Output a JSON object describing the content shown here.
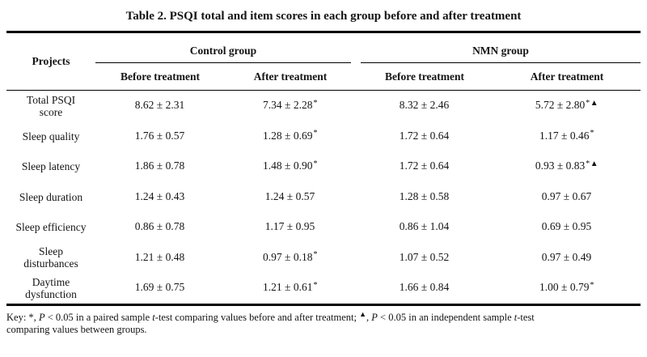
{
  "title": "Table 2. PSQI total and item scores in each group before and after treatment",
  "table": {
    "projects_header": "Projects",
    "groups": [
      {
        "label": "Control group",
        "sub": [
          "Before treatment",
          "After treatment"
        ]
      },
      {
        "label": "NMN group",
        "sub": [
          "Before treatment",
          "After treatment"
        ]
      }
    ],
    "rows": [
      {
        "label": "Total PSQI score",
        "cells": [
          {
            "value": "8.62 ± 2.31",
            "marker": ""
          },
          {
            "value": "7.34 ± 2.28",
            "marker": "*"
          },
          {
            "value": "8.32 ± 2.46",
            "marker": ""
          },
          {
            "value": "5.72 ± 2.80",
            "marker": "*▲"
          }
        ]
      },
      {
        "label": "Sleep quality",
        "cells": [
          {
            "value": "1.76 ± 0.57",
            "marker": ""
          },
          {
            "value": "1.28 ± 0.69",
            "marker": "*"
          },
          {
            "value": "1.72 ± 0.64",
            "marker": ""
          },
          {
            "value": "1.17 ± 0.46",
            "marker": "*"
          }
        ]
      },
      {
        "label": "Sleep latency",
        "cells": [
          {
            "value": "1.86 ± 0.78",
            "marker": ""
          },
          {
            "value": "1.48 ± 0.90",
            "marker": "*"
          },
          {
            "value": "1.72 ± 0.64",
            "marker": ""
          },
          {
            "value": "0.93 ± 0.83",
            "marker": "*▲"
          }
        ]
      },
      {
        "label": "Sleep duration",
        "cells": [
          {
            "value": "1.24 ± 0.43",
            "marker": ""
          },
          {
            "value": "1.24 ± 0.57",
            "marker": ""
          },
          {
            "value": "1.28 ± 0.58",
            "marker": ""
          },
          {
            "value": "0.97 ± 0.67",
            "marker": ""
          }
        ]
      },
      {
        "label": "Sleep efficiency",
        "cells": [
          {
            "value": "0.86 ± 0.78",
            "marker": ""
          },
          {
            "value": "1.17 ± 0.95",
            "marker": ""
          },
          {
            "value": "0.86 ± 1.04",
            "marker": ""
          },
          {
            "value": "0.69 ± 0.95",
            "marker": ""
          }
        ]
      },
      {
        "label": "Sleep disturbances",
        "cells": [
          {
            "value": "1.21 ± 0.48",
            "marker": ""
          },
          {
            "value": "0.97 ± 0.18",
            "marker": "*"
          },
          {
            "value": "1.07 ± 0.52",
            "marker": ""
          },
          {
            "value": "0.97 ± 0.49",
            "marker": ""
          }
        ]
      },
      {
        "label": "Daytime dysfunction",
        "cells": [
          {
            "value": "1.69 ± 0.75",
            "marker": ""
          },
          {
            "value": "1.21 ± 0.61",
            "marker": "*"
          },
          {
            "value": "1.66 ± 0.84",
            "marker": ""
          },
          {
            "value": "1.00 ± 0.79",
            "marker": "*"
          }
        ]
      }
    ]
  },
  "key": {
    "line1": [
      {
        "t": "Key: *, "
      },
      {
        "t": "P",
        "i": true
      },
      {
        "t": " < 0.05 in a paired sample "
      },
      {
        "t": "t",
        "i": true
      },
      {
        "t": "-test comparing values before and after treatment; "
      },
      {
        "t": "▲",
        "s": true
      },
      {
        "t": ", "
      },
      {
        "t": "P",
        "i": true
      },
      {
        "t": " < 0.05 in an independent sample "
      },
      {
        "t": "t",
        "i": true
      },
      {
        "t": "-test"
      }
    ],
    "line2": [
      {
        "t": "comparing values between groups."
      }
    ]
  }
}
